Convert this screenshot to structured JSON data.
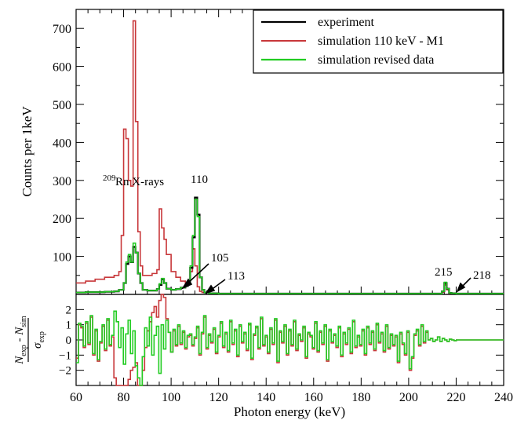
{
  "chart_data": [
    {
      "type": "line",
      "panel": "spectrum",
      "xlabel": "Photon energy (keV)",
      "ylabel": "Counts per 1keV",
      "xlim": [
        60,
        240
      ],
      "ylim": [
        0,
        750
      ],
      "yticks": [
        "100",
        "200",
        "300",
        "400",
        "500",
        "600",
        "700"
      ],
      "grid": false,
      "legend_position": "top-right",
      "annotations": {
        "xray_sup": "209",
        "xray_text": "Rn X-rays",
        "peak_110": "110",
        "peak_105": "105",
        "peak_113": "113",
        "peak_215": "215",
        "peak_218": "218"
      },
      "series": [
        {
          "name": "experiment",
          "color": "#000000",
          "points": [
            [
              60,
              5
            ],
            [
              64,
              6
            ],
            [
              68,
              6
            ],
            [
              72,
              7
            ],
            [
              76,
              8
            ],
            [
              78,
              12
            ],
            [
              80,
              30
            ],
            [
              81,
              80
            ],
            [
              82,
              100
            ],
            [
              83,
              85
            ],
            [
              84,
              125
            ],
            [
              85,
              110
            ],
            [
              86,
              55
            ],
            [
              87,
              30
            ],
            [
              88,
              12
            ],
            [
              90,
              10
            ],
            [
              92,
              10
            ],
            [
              94,
              14
            ],
            [
              95,
              25
            ],
            [
              96,
              40
            ],
            [
              97,
              30
            ],
            [
              98,
              15
            ],
            [
              100,
              12
            ],
            [
              102,
              14
            ],
            [
              104,
              18
            ],
            [
              106,
              22
            ],
            [
              107,
              30
            ],
            [
              108,
              70
            ],
            [
              109,
              150
            ],
            [
              110,
              255
            ],
            [
              111,
              210
            ],
            [
              112,
              45
            ],
            [
              113,
              12
            ],
            [
              114,
              5
            ],
            [
              116,
              3
            ],
            [
              120,
              2
            ],
            [
              140,
              2
            ],
            [
              180,
              2
            ],
            [
              200,
              2
            ],
            [
              212,
              2
            ],
            [
              214,
              8
            ],
            [
              215,
              30
            ],
            [
              216,
              15
            ],
            [
              217,
              4
            ],
            [
              218,
              3
            ],
            [
              220,
              2
            ],
            [
              240,
              2
            ]
          ]
        },
        {
          "name": "simulation 110 keV - M1",
          "color": "#c8373a",
          "points": [
            [
              60,
              30
            ],
            [
              64,
              35
            ],
            [
              68,
              40
            ],
            [
              72,
              45
            ],
            [
              76,
              50
            ],
            [
              78,
              60
            ],
            [
              79,
              155
            ],
            [
              80,
              435
            ],
            [
              81,
              410
            ],
            [
              82,
              300
            ],
            [
              83,
              285
            ],
            [
              84,
              720
            ],
            [
              85,
              455
            ],
            [
              86,
              165
            ],
            [
              87,
              75
            ],
            [
              88,
              50
            ],
            [
              90,
              50
            ],
            [
              92,
              55
            ],
            [
              94,
              65
            ],
            [
              95,
              225
            ],
            [
              96,
              175
            ],
            [
              97,
              145
            ],
            [
              98,
              105
            ],
            [
              100,
              60
            ],
            [
              102,
              45
            ],
            [
              104,
              35
            ],
            [
              106,
              28
            ],
            [
              107,
              35
            ],
            [
              108,
              60
            ],
            [
              109,
              120
            ],
            [
              110,
              75
            ],
            [
              111,
              20
            ],
            [
              112,
              8
            ],
            [
              113,
              5
            ],
            [
              116,
              3
            ],
            [
              120,
              2
            ],
            [
              180,
              2
            ],
            [
              212,
              2
            ],
            [
              214,
              6
            ],
            [
              215,
              25
            ],
            [
              216,
              12
            ],
            [
              217,
              3
            ],
            [
              220,
              2
            ],
            [
              240,
              2
            ]
          ]
        },
        {
          "name": "simulation revised data",
          "color": "#22cc22",
          "points": [
            [
              60,
              5
            ],
            [
              64,
              6
            ],
            [
              68,
              6
            ],
            [
              72,
              7
            ],
            [
              76,
              8
            ],
            [
              78,
              12
            ],
            [
              80,
              30
            ],
            [
              81,
              85
            ],
            [
              82,
              105
            ],
            [
              83,
              85
            ],
            [
              84,
              135
            ],
            [
              85,
              110
            ],
            [
              86,
              55
            ],
            [
              87,
              30
            ],
            [
              88,
              12
            ],
            [
              90,
              10
            ],
            [
              92,
              10
            ],
            [
              94,
              14
            ],
            [
              95,
              28
            ],
            [
              96,
              42
            ],
            [
              97,
              30
            ],
            [
              98,
              15
            ],
            [
              100,
              12
            ],
            [
              102,
              14
            ],
            [
              104,
              18
            ],
            [
              106,
              22
            ],
            [
              107,
              30
            ],
            [
              108,
              75
            ],
            [
              109,
              155
            ],
            [
              110,
              250
            ],
            [
              111,
              205
            ],
            [
              112,
              45
            ],
            [
              113,
              12
            ],
            [
              114,
              5
            ],
            [
              116,
              3
            ],
            [
              120,
              2
            ],
            [
              140,
              2
            ],
            [
              180,
              2
            ],
            [
              200,
              2
            ],
            [
              212,
              2
            ],
            [
              214,
              8
            ],
            [
              215,
              32
            ],
            [
              216,
              15
            ],
            [
              217,
              4
            ],
            [
              218,
              3
            ],
            [
              220,
              2
            ],
            [
              240,
              2
            ]
          ]
        }
      ]
    },
    {
      "type": "line",
      "panel": "residuals",
      "xlabel": "Photon energy (keV)",
      "ylabel": "(N exp - N sim) / σ exp",
      "xlim": [
        60,
        240
      ],
      "ylim": [
        -3,
        3
      ],
      "xticks": [
        "60",
        "80",
        "100",
        "120",
        "140",
        "160",
        "180",
        "200",
        "220",
        "240"
      ],
      "yticks": [
        "-2",
        "-1",
        "0",
        "1",
        "2"
      ],
      "series": [
        {
          "name": "simulation 110 keV - M1",
          "color": "#c8373a",
          "values": [
            -1.2,
            1.0,
            0.8,
            -0.5,
            1.1,
            -0.3,
            1.5,
            -1.0,
            0.6,
            -1.4,
            -0.2,
            0.9,
            -0.7,
            1.3,
            -0.4,
            0.2,
            -2.5,
            -3,
            -3,
            -3,
            -3,
            -3,
            -2.6,
            -2.0,
            -1.8,
            -1.5,
            -3,
            -3,
            -2.0,
            -0.5,
            0.6,
            1.2,
            1.8,
            2.2,
            1.5,
            2.6,
            3,
            2.8,
            1.4,
            0.5,
            -0.8,
            0.6,
            -0.4,
            0.9,
            -0.3,
            0.5,
            -0.6,
            0.2,
            0.3,
            -0.4,
            0.1,
            0.8,
            -1.0,
            0.4,
            1.5,
            -0.6,
            0.3,
            -0.2,
            0.7,
            -0.9,
            0.2,
            1.1,
            -0.5,
            0.4,
            -0.8,
            1.2,
            -0.3,
            0.6,
            -1.1,
            0.9,
            -0.2,
            0.4,
            -0.7,
            1.0,
            -1.3,
            0.3,
            0.8,
            -0.6,
            1.4,
            -0.4,
            0.2,
            -0.9,
            0.7,
            -0.3,
            1.3,
            -1.5,
            0.5,
            -0.2,
            0.9,
            -1.0,
            0.6,
            -0.4,
            1.2,
            -0.7,
            0.3,
            -0.1,
            0.8,
            -1.2,
            0.4,
            0.2,
            -0.6,
            1.1,
            -0.8,
            0.5,
            -0.3,
            0.9,
            -1.4,
            0.6,
            -0.2,
            0.3,
            -0.5,
            0.8,
            -1.1,
            0.4,
            -0.3,
            0.7,
            -0.9,
            1.2,
            -0.5,
            0.2,
            -0.4,
            0.6,
            -1.0,
            0.8,
            -0.3,
            0.5,
            -0.7,
            1.0,
            -0.2,
            0.4,
            -0.8,
            0.9,
            -0.6,
            0.3,
            -0.4,
            0.2,
            -1.5,
            0.4,
            -0.3,
            -1.0,
            0.5,
            -2.0,
            -1.2,
            0.3,
            0.6,
            -0.4,
            0.9,
            -0.2,
            0.5,
            0.0,
            0.1,
            -0.1,
            0.0,
            0.2,
            -0.1,
            0.1,
            0.0,
            -0.1,
            0.05,
            0.0,
            -0.05,
            0.0,
            0.0,
            0.0,
            0.0,
            0.0,
            0.0,
            0.0,
            0.0,
            0.0,
            0.0,
            0.0,
            0.0,
            0.0,
            0.0,
            0.0,
            0.0,
            0.0,
            0.0,
            0.0,
            0.0
          ]
        },
        {
          "name": "simulation revised data",
          "color": "#22cc22",
          "values": [
            -1.5,
            1.1,
            0.9,
            -0.4,
            1.2,
            -0.2,
            1.6,
            -0.9,
            0.7,
            -1.3,
            -0.1,
            1.0,
            -0.6,
            1.4,
            -0.3,
            0.3,
            1.9,
            1.2,
            -0.5,
            0.8,
            -1.6,
            0.4,
            1.3,
            -0.9,
            0.6,
            -1.7,
            -2.5,
            -3,
            -1.1,
            0.8,
            -0.4,
            1.5,
            -1.0,
            0.3,
            0.9,
            -2.2,
            1.0,
            -0.6,
            1.3,
            0.5,
            -0.8,
            0.7,
            -0.3,
            1.0,
            -0.2,
            0.6,
            -0.5,
            0.3,
            0.4,
            -0.3,
            0.2,
            0.9,
            -0.9,
            0.5,
            1.6,
            -0.5,
            0.4,
            -0.1,
            0.8,
            -0.8,
            0.3,
            1.2,
            -0.4,
            0.5,
            -0.7,
            1.3,
            -0.2,
            0.7,
            -1.0,
            1.0,
            -0.1,
            0.5,
            -0.6,
            1.1,
            -1.2,
            0.4,
            0.9,
            -0.5,
            1.5,
            -0.3,
            0.3,
            -0.8,
            0.8,
            -0.2,
            1.4,
            -1.4,
            0.6,
            -0.1,
            1.0,
            -0.9,
            0.7,
            -0.3,
            1.3,
            -0.6,
            0.4,
            0.0,
            0.9,
            -1.1,
            0.5,
            0.3,
            -0.5,
            1.2,
            -0.7,
            0.6,
            -0.2,
            1.0,
            -1.3,
            0.7,
            -0.1,
            0.4,
            -0.4,
            0.9,
            -1.0,
            0.5,
            -0.2,
            0.8,
            -0.8,
            1.3,
            -0.4,
            0.3,
            -0.3,
            0.7,
            -0.9,
            0.9,
            -0.2,
            0.6,
            -0.6,
            1.1,
            -0.1,
            0.5,
            -0.7,
            1.0,
            -0.5,
            0.4,
            -0.3,
            0.3,
            -1.4,
            0.5,
            -0.2,
            -0.9,
            0.6,
            -1.9,
            -1.1,
            0.4,
            0.7,
            -0.3,
            1.0,
            -0.1,
            0.6,
            0.0,
            0.1,
            -0.1,
            0.0,
            0.2,
            -0.1,
            0.1,
            0.0,
            -0.1,
            0.05,
            0.0,
            -0.05,
            0.0,
            0.0,
            0.0,
            0.0,
            0.0,
            0.0,
            0.0,
            0.0,
            0.0,
            0.0,
            0.0,
            0.0,
            0.0,
            0.0,
            0.0,
            0.0,
            0.0,
            0.0,
            0.0,
            0.0
          ]
        }
      ]
    }
  ]
}
